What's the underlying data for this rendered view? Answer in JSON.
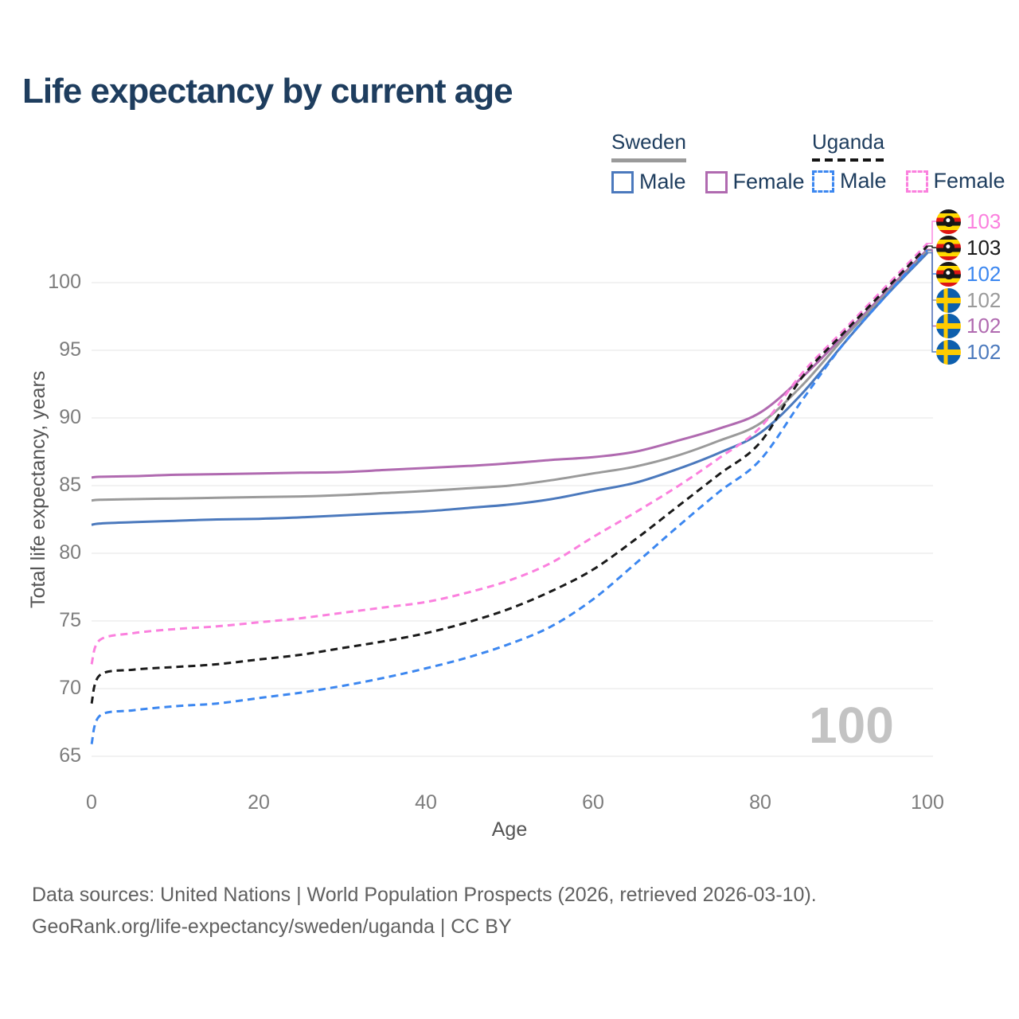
{
  "title": "Life expectancy by current age",
  "legend": {
    "groups": [
      {
        "name": "Sweden",
        "line_style": "solid",
        "line_color": "#9a9a9a",
        "items": [
          {
            "label": "Male",
            "color": "#4b79bd"
          },
          {
            "label": "Female",
            "color": "#b06ab0"
          }
        ]
      },
      {
        "name": "Uganda",
        "line_style": "dashed",
        "line_color": "#141414",
        "items": [
          {
            "label": "Male",
            "color": "#3c87f0"
          },
          {
            "label": "Female",
            "color": "#fb80de"
          }
        ]
      }
    ]
  },
  "watermark": "100",
  "chart_data": {
    "type": "line",
    "title": "Life expectancy by current age",
    "xlabel": "Age",
    "ylabel": "Total life expectancy, years",
    "xlim": [
      0,
      100
    ],
    "ylim": [
      63.5,
      104
    ],
    "x_ticks": [
      0,
      20,
      40,
      60,
      80,
      100
    ],
    "y_ticks": [
      65,
      70,
      75,
      80,
      85,
      90,
      95,
      100
    ],
    "grid": true,
    "legend_position": "top-right",
    "x": [
      0,
      1,
      5,
      10,
      15,
      20,
      25,
      30,
      35,
      40,
      45,
      50,
      55,
      60,
      65,
      70,
      75,
      80,
      85,
      90,
      95,
      100
    ],
    "series": [
      {
        "key": "sweden_female",
        "name": "Sweden Female",
        "country": "Sweden",
        "sex": "Female",
        "color": "#b06ab0",
        "dashed": false,
        "values": [
          85.6,
          85.65,
          85.7,
          85.8,
          85.85,
          85.9,
          85.95,
          86.0,
          86.15,
          86.3,
          86.45,
          86.65,
          86.9,
          87.1,
          87.5,
          88.3,
          89.2,
          90.4,
          93.0,
          96.1,
          99.3,
          102.45
        ]
      },
      {
        "key": "sweden_total",
        "name": "Sweden (both sexes)",
        "country": "Sweden",
        "sex": "Total",
        "color": "#9a9a9a",
        "dashed": false,
        "values": [
          83.9,
          83.95,
          84.0,
          84.05,
          84.1,
          84.15,
          84.2,
          84.3,
          84.45,
          84.6,
          84.8,
          85.0,
          85.4,
          85.9,
          86.4,
          87.2,
          88.3,
          89.6,
          92.4,
          95.9,
          99.15,
          102.35
        ]
      },
      {
        "key": "sweden_male",
        "name": "Sweden Male",
        "country": "Sweden",
        "sex": "Male",
        "color": "#4b79bd",
        "dashed": false,
        "values": [
          82.1,
          82.2,
          82.3,
          82.4,
          82.5,
          82.55,
          82.65,
          82.8,
          82.95,
          83.1,
          83.35,
          83.6,
          84.0,
          84.6,
          85.2,
          86.2,
          87.4,
          88.9,
          91.8,
          95.5,
          99.0,
          102.2
        ]
      },
      {
        "key": "uganda_female",
        "name": "Uganda Female",
        "country": "Uganda",
        "sex": "Female",
        "color": "#fb80de",
        "dashed": true,
        "values": [
          71.8,
          73.6,
          74.1,
          74.4,
          74.6,
          74.9,
          75.2,
          75.6,
          76.0,
          76.4,
          77.1,
          78.0,
          79.3,
          81.2,
          83.0,
          84.9,
          87.0,
          89.3,
          93.3,
          96.5,
          99.7,
          102.9
        ]
      },
      {
        "key": "uganda_total",
        "name": "Uganda (both sexes)",
        "country": "Uganda",
        "sex": "Total",
        "color": "#1a1a1a",
        "dashed": true,
        "values": [
          68.9,
          71.0,
          71.4,
          71.6,
          71.8,
          72.15,
          72.5,
          73.0,
          73.5,
          74.1,
          74.9,
          75.9,
          77.2,
          78.8,
          81.0,
          83.4,
          85.8,
          88.2,
          93.0,
          96.3,
          99.5,
          102.7
        ]
      },
      {
        "key": "uganda_male",
        "name": "Uganda Male",
        "country": "Uganda",
        "sex": "Male",
        "color": "#3c87f0",
        "dashed": true,
        "values": [
          65.9,
          68.0,
          68.4,
          68.7,
          68.9,
          69.3,
          69.7,
          70.2,
          70.8,
          71.5,
          72.3,
          73.3,
          74.6,
          76.6,
          79.2,
          81.9,
          84.5,
          86.9,
          91.3,
          95.5,
          99.0,
          102.4
        ]
      }
    ],
    "end_labels": [
      {
        "series_key": "uganda_female",
        "text": "103",
        "flag": "uganda"
      },
      {
        "series_key": "uganda_total",
        "text": "103",
        "flag": "uganda"
      },
      {
        "series_key": "uganda_male",
        "text": "102",
        "flag": "uganda"
      },
      {
        "series_key": "sweden_total",
        "text": "102",
        "flag": "sweden"
      },
      {
        "series_key": "sweden_female",
        "text": "102",
        "flag": "sweden"
      },
      {
        "series_key": "sweden_male",
        "text": "102",
        "flag": "sweden"
      }
    ]
  },
  "footer": {
    "line1": "Data sources: United Nations | World Population Prospects (2026, retrieved 2026-03-10).",
    "line2": "GeoRank.org/life-expectancy/sweden/uganda | CC BY"
  },
  "colors": {
    "title_text": "#1e3d5e",
    "axis_text": "#7d7d7d",
    "gridline": "#eaeaea",
    "watermark": "#c3c3c3",
    "footer_text": "#606060",
    "sweden_male": "#4b79bd",
    "sweden_female": "#b06ab0",
    "sweden_total": "#9a9a9a",
    "uganda_male": "#3c87f0",
    "uganda_female": "#fb80de",
    "uganda_total": "#1a1a1a"
  }
}
